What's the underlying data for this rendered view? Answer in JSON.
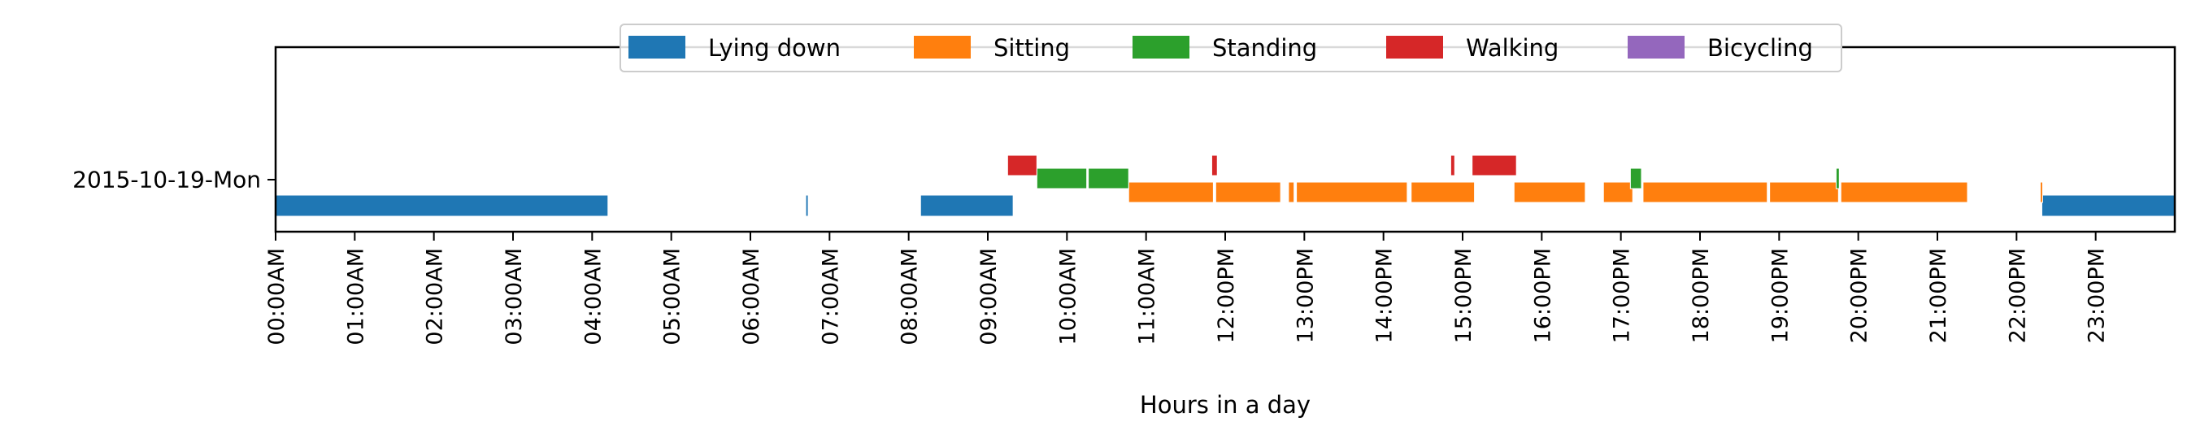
{
  "chart_data": {
    "type": "timeline",
    "title": "",
    "xlabel": "Hours in a day",
    "ylabel": "",
    "xlim": [
      0,
      24
    ],
    "y_categories": [
      "2015-10-19-Mon"
    ],
    "x_ticks": [
      {
        "hour": 0,
        "label": "00:00AM"
      },
      {
        "hour": 1,
        "label": "01:00AM"
      },
      {
        "hour": 2,
        "label": "02:00AM"
      },
      {
        "hour": 3,
        "label": "03:00AM"
      },
      {
        "hour": 4,
        "label": "04:00AM"
      },
      {
        "hour": 5,
        "label": "05:00AM"
      },
      {
        "hour": 6,
        "label": "06:00AM"
      },
      {
        "hour": 7,
        "label": "07:00AM"
      },
      {
        "hour": 8,
        "label": "08:00AM"
      },
      {
        "hour": 9,
        "label": "09:00AM"
      },
      {
        "hour": 10,
        "label": "10:00AM"
      },
      {
        "hour": 11,
        "label": "11:00AM"
      },
      {
        "hour": 12,
        "label": "12:00PM"
      },
      {
        "hour": 13,
        "label": "13:00PM"
      },
      {
        "hour": 14,
        "label": "14:00PM"
      },
      {
        "hour": 15,
        "label": "15:00PM"
      },
      {
        "hour": 16,
        "label": "16:00PM"
      },
      {
        "hour": 17,
        "label": "17:00PM"
      },
      {
        "hour": 18,
        "label": "18:00PM"
      },
      {
        "hour": 19,
        "label": "19:00PM"
      },
      {
        "hour": 20,
        "label": "20:00PM"
      },
      {
        "hour": 21,
        "label": "21:00PM"
      },
      {
        "hour": 22,
        "label": "22:00PM"
      },
      {
        "hour": 23,
        "label": "23:00PM"
      }
    ],
    "legend_position": "top-center",
    "series": [
      {
        "name": "Lying down",
        "color": "#1f77b4",
        "intervals": [
          [
            0.0,
            4.2
          ],
          [
            6.7,
            6.73
          ],
          [
            8.15,
            9.32
          ],
          [
            22.32,
            24.0
          ]
        ]
      },
      {
        "name": "Sitting",
        "color": "#ff7f0e",
        "intervals": [
          [
            10.78,
            11.85
          ],
          [
            11.88,
            12.7
          ],
          [
            12.8,
            12.87
          ],
          [
            12.9,
            14.3
          ],
          [
            14.35,
            15.15
          ],
          [
            15.65,
            16.55
          ],
          [
            16.78,
            17.15
          ],
          [
            17.28,
            18.85
          ],
          [
            18.88,
            19.75
          ],
          [
            19.78,
            21.38
          ],
          [
            22.3,
            22.33
          ]
        ]
      },
      {
        "name": "Standing",
        "color": "#2ca02c",
        "intervals": [
          [
            9.62,
            10.25
          ],
          [
            10.27,
            10.78
          ],
          [
            17.12,
            17.26
          ],
          [
            19.72,
            19.76
          ]
        ]
      },
      {
        "name": "Walking",
        "color": "#d62728",
        "intervals": [
          [
            9.25,
            9.62
          ],
          [
            11.83,
            11.9
          ],
          [
            14.85,
            14.9
          ],
          [
            15.12,
            15.68
          ]
        ]
      },
      {
        "name": "Bicycling",
        "color": "#9467bd",
        "intervals": []
      }
    ]
  }
}
